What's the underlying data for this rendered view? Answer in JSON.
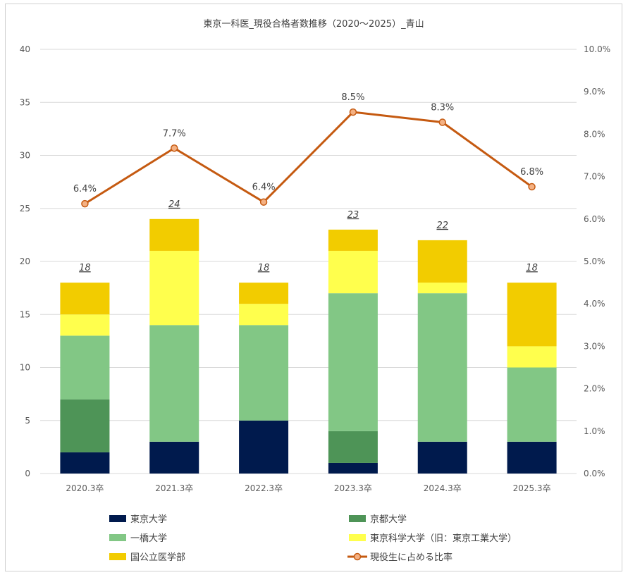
{
  "chart_data": {
    "type": "bar",
    "title": "東京一科医_現役合格者数推移（2020～2025）_青山",
    "categories": [
      "2020.3卒",
      "2021.3卒",
      "2022.3卒",
      "2023.3卒",
      "2024.3卒",
      "2025.3卒"
    ],
    "y_left": {
      "min": 0,
      "max": 40,
      "ticks": [
        0,
        5,
        10,
        15,
        20,
        25,
        30,
        35,
        40
      ]
    },
    "y_right": {
      "min": 0,
      "max": 10,
      "ticks": [
        "0.0%",
        "1.0%",
        "2.0%",
        "3.0%",
        "4.0%",
        "5.0%",
        "6.0%",
        "7.0%",
        "8.0%",
        "9.0%",
        "10.0%"
      ]
    },
    "grid": true,
    "legend_position": "bottom",
    "series": [
      {
        "name": "東京大学",
        "type": "bar",
        "color": "#001a4d",
        "values": [
          2,
          3,
          5,
          1,
          3,
          3
        ]
      },
      {
        "name": "京都大学",
        "type": "bar",
        "color": "#4e9457",
        "values": [
          5,
          0,
          0,
          3,
          0,
          0
        ]
      },
      {
        "name": "一橋大学",
        "type": "bar",
        "color": "#82c785",
        "values": [
          6,
          11,
          9,
          13,
          14,
          7
        ]
      },
      {
        "name": "東京科学大学（旧：東京工業大学）",
        "type": "bar",
        "color": "#ffff4d",
        "values": [
          2,
          7,
          2,
          4,
          1,
          2
        ]
      },
      {
        "name": "国公立医学部",
        "type": "bar",
        "color": "#f2cc00",
        "values": [
          3,
          3,
          2,
          2,
          4,
          6
        ]
      },
      {
        "name": "現役生に占める比率",
        "type": "line",
        "axis": "right",
        "color": "#c55a11",
        "marker_fill": "#f4b183",
        "values": [
          6.36,
          7.67,
          6.4,
          8.52,
          8.28,
          6.76
        ],
        "labels": [
          "6.4%",
          "7.7%",
          "6.4%",
          "8.5%",
          "8.3%",
          "6.8%"
        ]
      }
    ],
    "totals": [
      "18",
      "24",
      "18",
      "23",
      "22",
      "18"
    ]
  }
}
